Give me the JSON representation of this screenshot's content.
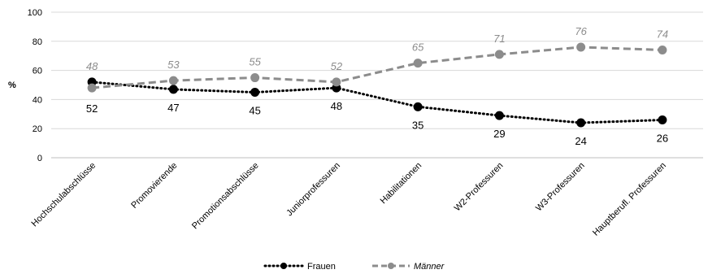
{
  "chart_data": {
    "type": "line",
    "ylabel": "%",
    "ylim": [
      0,
      100
    ],
    "yticks": [
      0,
      20,
      40,
      60,
      80,
      100
    ],
    "categories": [
      "Hochschulabschlüsse",
      "Promovierende",
      "Promotionsabschlüsse",
      "Juniorprofessuren",
      "Habilitationen",
      "W2-Professuren",
      "W3-Professuren",
      "Hauptberufl. Professuren"
    ],
    "series": [
      {
        "name": "Frauen",
        "values": [
          52,
          47,
          45,
          48,
          35,
          29,
          24,
          26
        ],
        "color": "#000000",
        "style": "dotted"
      },
      {
        "name": "Männer",
        "values": [
          48,
          53,
          55,
          52,
          65,
          71,
          76,
          74
        ],
        "color": "#8c8c8c",
        "style": "dashed"
      }
    ],
    "grid": true,
    "legend": "bottom"
  }
}
